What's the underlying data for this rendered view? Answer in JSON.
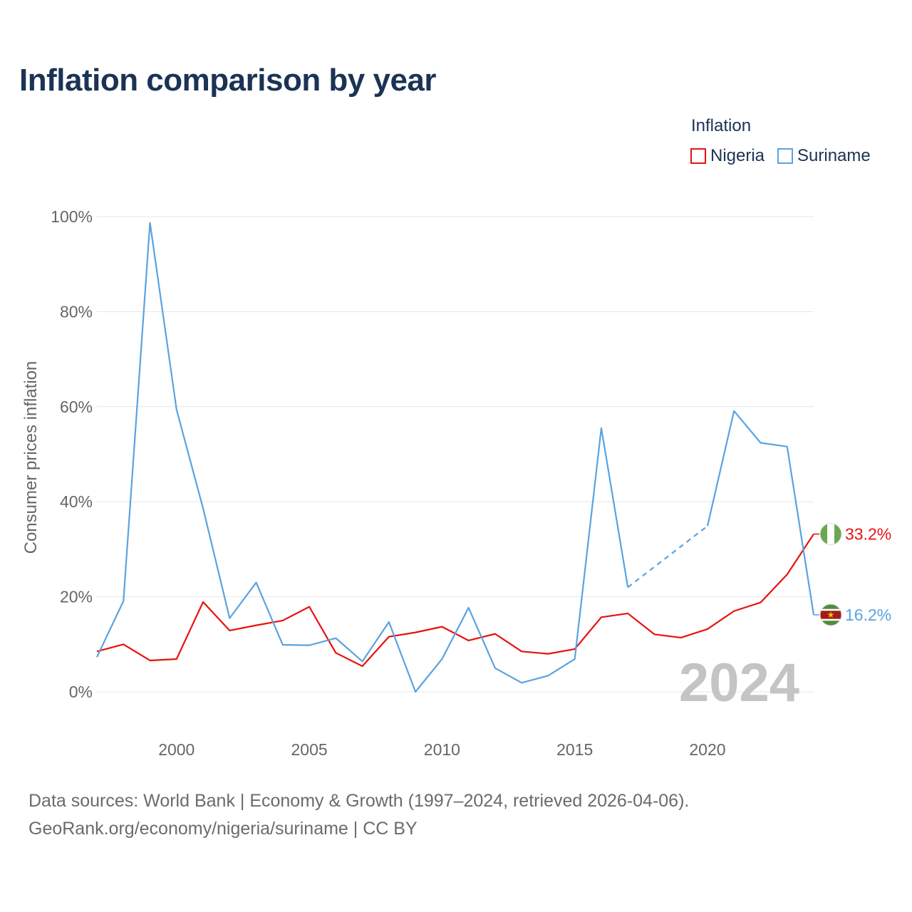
{
  "title": "Inflation comparison by year",
  "legend": {
    "title": "Inflation",
    "items": [
      {
        "label": "Nigeria",
        "color": "#e8110f"
      },
      {
        "label": "Suriname",
        "color": "#5aa3e0"
      }
    ]
  },
  "source": {
    "line1": "Data sources: World Bank | Economy & Growth (1997–2024, retrieved 2026-04-06).",
    "line2": "GeoRank.org/economy/nigeria/suriname | CC BY"
  },
  "chart_data": {
    "type": "line",
    "title": "Inflation comparison by year",
    "xlabel": "",
    "ylabel": "Consumer prices inflation",
    "xlim": [
      1997,
      2024
    ],
    "ylim": [
      0,
      100
    ],
    "x_ticks": [
      2000,
      2005,
      2010,
      2015,
      2020
    ],
    "y_ticks": [
      0,
      20,
      40,
      60,
      80,
      100
    ],
    "y_tick_labels": [
      "0%",
      "20%",
      "40%",
      "60%",
      "80%",
      "100%"
    ],
    "grid": true,
    "legend_position": "top-right",
    "current_year_label": "2024",
    "series": [
      {
        "name": "Nigeria",
        "color": "#e8110f",
        "x": [
          1997,
          1998,
          1999,
          2000,
          2001,
          2002,
          2003,
          2004,
          2005,
          2006,
          2007,
          2008,
          2009,
          2010,
          2011,
          2012,
          2013,
          2014,
          2015,
          2016,
          2017,
          2018,
          2019,
          2020,
          2021,
          2022,
          2023,
          2024
        ],
        "values": [
          8.5,
          10.0,
          6.6,
          6.9,
          18.9,
          12.9,
          14.0,
          15.0,
          17.9,
          8.2,
          5.4,
          11.6,
          12.5,
          13.7,
          10.8,
          12.2,
          8.5,
          8.0,
          9.0,
          15.7,
          16.5,
          12.1,
          11.4,
          13.2,
          17.0,
          18.8,
          24.7,
          33.2
        ],
        "end_label": "33.2%",
        "gaps": []
      },
      {
        "name": "Suriname",
        "color": "#5aa3e0",
        "x": [
          1997,
          1998,
          1999,
          2000,
          2001,
          2002,
          2003,
          2004,
          2005,
          2006,
          2007,
          2008,
          2009,
          2010,
          2011,
          2012,
          2013,
          2014,
          2015,
          2016,
          2017,
          2018,
          2019,
          2020,
          2021,
          2022,
          2023,
          2024
        ],
        "values": [
          7.3,
          19.1,
          98.7,
          59.4,
          38.6,
          15.5,
          23.0,
          9.9,
          9.8,
          11.3,
          6.4,
          14.7,
          0.0,
          6.9,
          17.7,
          5.0,
          1.9,
          3.4,
          6.9,
          55.5,
          22.0,
          null,
          null,
          34.9,
          59.1,
          52.4,
          51.6,
          16.2
        ],
        "end_label": "16.2%",
        "gaps": [
          [
            2017,
            2020
          ]
        ]
      }
    ]
  }
}
